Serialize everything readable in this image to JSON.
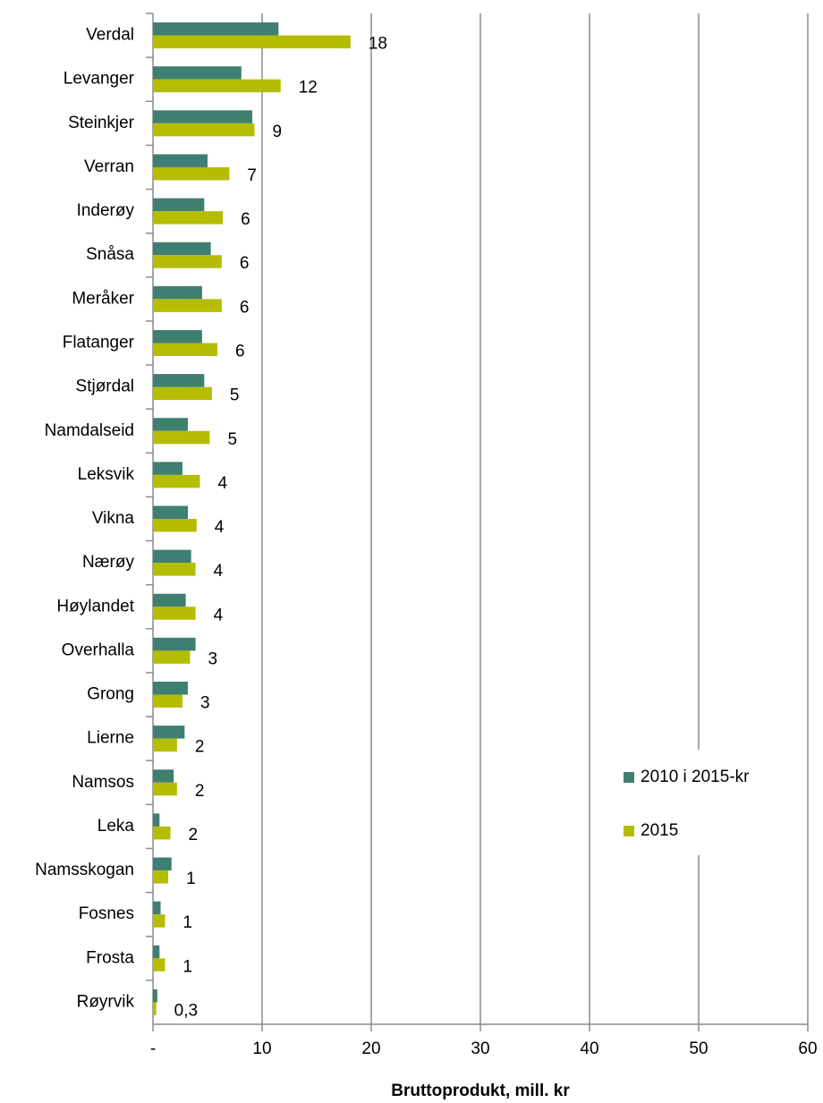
{
  "chart_data": {
    "type": "bar",
    "orientation": "horizontal",
    "categories": [
      "Verdal",
      "Levanger",
      "Steinkjer",
      "Verran",
      "Inderøy",
      "Snåsa",
      "Meråker",
      "Flatanger",
      "Stjørdal",
      "Namdalseid",
      "Leksvik",
      "Vikna",
      "Nærøy",
      "Høylandet",
      "Overhalla",
      "Grong",
      "Lierne",
      "Namsos",
      "Leka",
      "Namsskogan",
      "Fosnes",
      "Frosta",
      "Røyrvik"
    ],
    "series": [
      {
        "name": "2010 i 2015-kr",
        "color": "#3f7f72",
        "values": [
          11.5,
          8.1,
          9.1,
          5.0,
          4.7,
          5.3,
          4.5,
          4.5,
          4.7,
          3.2,
          2.7,
          3.2,
          3.5,
          3.0,
          3.9,
          3.2,
          2.9,
          1.9,
          0.6,
          1.7,
          0.7,
          0.6,
          0.4
        ]
      },
      {
        "name": "2015",
        "color": "#b4bd00",
        "values": [
          18.1,
          11.7,
          9.3,
          7.0,
          6.4,
          6.3,
          6.3,
          5.9,
          5.4,
          5.2,
          4.3,
          4.0,
          3.9,
          3.9,
          3.4,
          2.7,
          2.2,
          2.2,
          1.6,
          1.4,
          1.1,
          1.1,
          0.3
        ],
        "value_labels": [
          "18",
          "12",
          "9",
          "7",
          "6",
          "6",
          "6",
          "6",
          "5",
          "5",
          "4",
          "4",
          "4",
          "4",
          "3",
          "3",
          "2",
          "2",
          "2",
          "1",
          "1",
          "1",
          "0,3"
        ]
      }
    ],
    "xlim": [
      0,
      60
    ],
    "xticks": [
      {
        "value": 0,
        "label": "-"
      },
      10,
      20,
      30,
      40,
      50,
      60
    ],
    "xlabel": "Bruttoprodukt, mill. kr",
    "grid": true,
    "legend": "right"
  }
}
